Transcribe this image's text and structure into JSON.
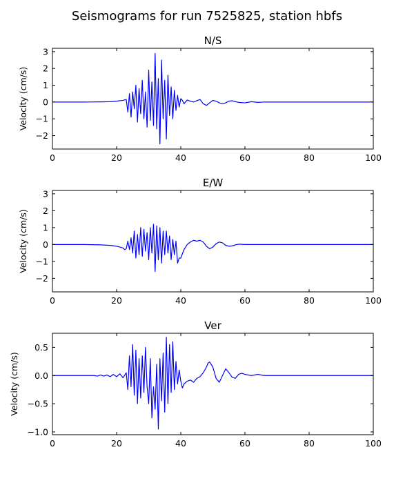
{
  "figure": {
    "title": "Seismograms for run 7525825, station hbfs"
  },
  "chart_data": [
    {
      "type": "line",
      "title": "N/S",
      "xlabel": "",
      "ylabel": "Velocity (cm/s)",
      "xlim": [
        0,
        100
      ],
      "ylim": [
        -2.8,
        3.2
      ],
      "x_ticks": [
        0,
        20,
        40,
        60,
        80,
        100
      ],
      "y_ticks": [
        -2,
        -1,
        0,
        1,
        2,
        3
      ],
      "x_tick_labels": [
        "0",
        "20",
        "40",
        "60",
        "80",
        "100"
      ],
      "y_tick_labels": [
        "−2",
        "−1",
        "0",
        "1",
        "2",
        "3"
      ],
      "grid": false,
      "color": "#0000ff",
      "series": [
        {
          "x": [
            0,
            10,
            15,
            18,
            20,
            21,
            22,
            23,
            23.5,
            24,
            24.5,
            25,
            25.5,
            26,
            26.5,
            27,
            27.5,
            28,
            28.5,
            29,
            29.5,
            30,
            30.5,
            31,
            31.5,
            32,
            32.5,
            33,
            33.5,
            34,
            34.5,
            35,
            35.5,
            36,
            36.5,
            37,
            37.5,
            38,
            38.5,
            39,
            39.5,
            40,
            40.5,
            41,
            42,
            43,
            44,
            45,
            46,
            47,
            48,
            49,
            50,
            51,
            52,
            53,
            54,
            55,
            56,
            57,
            58,
            60,
            62,
            64,
            66,
            70,
            80,
            90,
            100
          ],
          "y": [
            0,
            0,
            0.01,
            0.02,
            0.05,
            0.08,
            0.1,
            0.15,
            -0.6,
            0.5,
            -0.9,
            0.6,
            -0.4,
            1.0,
            -1.2,
            0.8,
            -0.7,
            1.3,
            -1.0,
            0.6,
            -1.5,
            1.9,
            -1.1,
            1.2,
            -1.4,
            2.9,
            -1.6,
            1.4,
            -2.5,
            2.5,
            -1.0,
            1.3,
            -2.2,
            1.6,
            -0.8,
            0.9,
            -1.0,
            0.7,
            -0.5,
            0.4,
            -0.3,
            0.2,
            0.1,
            -0.1,
            0.12,
            0.05,
            0.0,
            0.08,
            0.15,
            -0.1,
            -0.2,
            -0.05,
            0.1,
            0.05,
            -0.05,
            -0.1,
            -0.05,
            0.05,
            0.08,
            0.02,
            -0.02,
            -0.05,
            0.02,
            -0.02,
            0.0,
            0.0,
            0.0,
            0.0,
            0.0
          ]
        }
      ]
    },
    {
      "type": "line",
      "title": "E/W",
      "xlabel": "",
      "ylabel": "Velocity (cm/s)",
      "xlim": [
        0,
        100
      ],
      "ylim": [
        -2.8,
        3.2
      ],
      "x_ticks": [
        0,
        20,
        40,
        60,
        80,
        100
      ],
      "y_ticks": [
        -2,
        -1,
        0,
        1,
        2,
        3
      ],
      "x_tick_labels": [
        "0",
        "20",
        "40",
        "60",
        "80",
        "100"
      ],
      "y_tick_labels": [
        "−2",
        "−1",
        "0",
        "1",
        "2",
        "3"
      ],
      "grid": false,
      "color": "#0000ff",
      "series": [
        {
          "x": [
            0,
            10,
            15,
            18,
            20,
            21,
            22,
            22.5,
            23,
            23.5,
            24,
            24.5,
            25,
            25.5,
            26,
            26.5,
            27,
            27.5,
            28,
            28.5,
            29,
            29.5,
            30,
            30.5,
            31,
            31.5,
            32,
            32.5,
            33,
            33.5,
            34,
            34.5,
            35,
            35.5,
            36,
            36.5,
            37,
            37.5,
            38,
            38.5,
            39,
            39.5,
            40,
            41,
            42,
            43,
            44,
            45,
            46,
            47,
            48,
            49,
            50,
            51,
            52,
            53,
            54,
            55,
            56,
            57,
            58,
            60,
            62,
            65,
            70,
            80,
            90,
            100
          ],
          "y": [
            0,
            0,
            -0.02,
            -0.05,
            -0.1,
            -0.15,
            -0.2,
            -0.3,
            -0.25,
            0.2,
            -0.3,
            0.4,
            -0.5,
            0.8,
            -0.8,
            0.6,
            -0.6,
            1.0,
            -0.7,
            0.9,
            -0.4,
            0.7,
            -0.9,
            1.0,
            -0.5,
            1.2,
            -1.6,
            1.1,
            -0.9,
            1.0,
            -1.1,
            0.8,
            -0.6,
            0.8,
            -0.5,
            0.5,
            -0.9,
            0.3,
            -0.6,
            0.2,
            -1.1,
            -0.8,
            -0.8,
            -0.3,
            0.0,
            0.15,
            0.25,
            0.2,
            0.25,
            0.15,
            -0.1,
            -0.25,
            -0.15,
            0.05,
            0.15,
            0.1,
            -0.05,
            -0.1,
            -0.08,
            -0.02,
            0.02,
            0.0,
            0.0,
            0.0,
            0.0,
            0.0,
            0.0,
            0.0
          ]
        }
      ]
    },
    {
      "type": "line",
      "title": "Ver",
      "xlabel": "",
      "ylabel": "Velocity (cm/s)",
      "xlim": [
        0,
        100
      ],
      "ylim": [
        -1.05,
        0.75
      ],
      "x_ticks": [
        0,
        20,
        40,
        60,
        80,
        100
      ],
      "y_ticks": [
        -1.0,
        -0.5,
        0.0,
        0.5
      ],
      "x_tick_labels": [
        "0",
        "20",
        "40",
        "60",
        "80",
        "100"
      ],
      "y_tick_labels": [
        "−1.0",
        "−0.5",
        "0.0",
        "0.5"
      ],
      "grid": false,
      "color": "#0000ff",
      "series": [
        {
          "x": [
            0,
            10,
            13,
            14,
            15,
            16,
            17,
            18,
            19,
            20,
            21,
            22,
            23,
            23.5,
            24,
            24.5,
            25,
            25.5,
            26,
            26.5,
            27,
            27.5,
            28,
            28.5,
            29,
            29.5,
            30,
            30.5,
            31,
            31.5,
            32,
            32.5,
            33,
            33.5,
            34,
            34.5,
            35,
            35.5,
            36,
            36.5,
            37,
            37.5,
            38,
            38.5,
            39,
            39.5,
            40,
            40.5,
            41,
            42,
            43,
            44,
            45,
            46,
            47,
            48,
            48.5,
            49,
            50,
            51,
            52,
            53,
            54,
            55,
            56,
            57,
            58,
            59,
            60,
            62,
            64,
            66,
            70,
            80,
            90,
            100
          ],
          "y": [
            0,
            0,
            0,
            -0.01,
            0.01,
            -0.01,
            0.01,
            -0.02,
            0.02,
            -0.02,
            0.03,
            -0.04,
            0.05,
            -0.25,
            0.35,
            -0.2,
            0.55,
            -0.35,
            0.45,
            -0.5,
            0.3,
            -0.4,
            0.35,
            -0.3,
            0.5,
            -0.2,
            -0.5,
            0.3,
            -0.75,
            -0.2,
            -0.6,
            0.2,
            -0.95,
            0.3,
            -0.45,
            0.4,
            -0.65,
            0.68,
            -0.5,
            0.55,
            -0.3,
            0.6,
            -0.25,
            0.25,
            -0.15,
            0.1,
            -0.1,
            -0.22,
            -0.15,
            -0.1,
            -0.08,
            -0.12,
            -0.05,
            -0.02,
            0.05,
            0.15,
            0.22,
            0.24,
            0.15,
            -0.05,
            -0.12,
            0.0,
            0.12,
            0.05,
            -0.03,
            -0.05,
            0.02,
            0.04,
            0.02,
            0.0,
            0.02,
            0.0,
            0.0,
            0.0,
            0.0,
            0.0
          ]
        }
      ]
    }
  ]
}
